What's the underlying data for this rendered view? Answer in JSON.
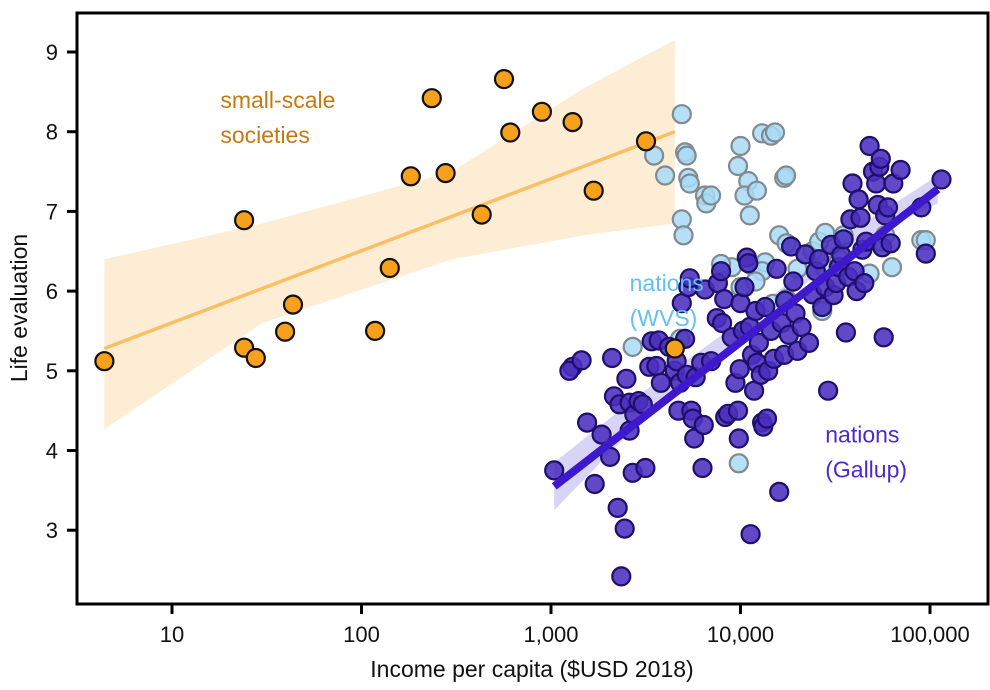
{
  "chart_data": {
    "type": "scatter",
    "title": "",
    "xlabel": "Income per capita ($USD 2018)",
    "ylabel": "Life evaluation",
    "xscale": "log",
    "xlim": [
      3.2,
      190000
    ],
    "ylim": [
      2.1,
      9.5
    ],
    "xticks": [
      10,
      100,
      1000,
      10000,
      100000
    ],
    "xtick_labels": [
      "10",
      "100",
      "1,000",
      "10,000",
      "100,000"
    ],
    "yticks": [
      3,
      4,
      5,
      6,
      7,
      8,
      9
    ],
    "ytick_labels": [
      "3",
      "4",
      "5",
      "6",
      "7",
      "8",
      "9"
    ],
    "grid": false,
    "colors": {
      "small_scale": "#f7a01c",
      "small_scale_line": "#fbbf63",
      "small_scale_band": "#fdebd0",
      "wvs": "#a8dbf7",
      "wvs_edge": "#808a8f",
      "gallup": "#4a2fbf",
      "gallup_edge": "#1d0f6b",
      "gallup_line": "#3d18cc",
      "gallup_band": "#cbc5f2",
      "label_small": "#c57a10",
      "label_wvs": "#62c0f2",
      "label_gallup": "#4a2bcc"
    },
    "annotations": [
      {
        "id": "small-scale",
        "lines": [
          "small-scale",
          "societies"
        ],
        "x": 18,
        "y": 8.3
      },
      {
        "id": "wvs",
        "lines": [
          "nations",
          "(WVS)"
        ],
        "x": 2600,
        "y": 6.0
      },
      {
        "id": "gallup",
        "lines": [
          "nations",
          "(Gallup)"
        ],
        "x": 28000,
        "y": 4.1
      }
    ],
    "series": [
      {
        "name": "small-scale societies",
        "fit": {
          "x": [
            4.4,
            4500
          ],
          "y": [
            5.28,
            8.0
          ]
        },
        "ci_band": {
          "x": [
            4.4,
            30,
            300,
            1500,
            4500
          ],
          "lower": [
            4.27,
            5.6,
            6.4,
            6.7,
            6.85
          ],
          "upper": [
            6.4,
            6.85,
            7.5,
            8.55,
            9.15
          ]
        },
        "points": [
          [
            4.4,
            5.12
          ],
          [
            24,
            6.89
          ],
          [
            24,
            5.29
          ],
          [
            27.7,
            5.16
          ],
          [
            39.5,
            5.49
          ],
          [
            43.5,
            5.83
          ],
          [
            118,
            5.5
          ],
          [
            141,
            6.29
          ],
          [
            182,
            7.44
          ],
          [
            235,
            8.42
          ],
          [
            278,
            7.48
          ],
          [
            431,
            6.96
          ],
          [
            565,
            8.66
          ],
          [
            610,
            7.99
          ],
          [
            895,
            8.25
          ],
          [
            1300,
            8.12
          ],
          [
            1680,
            7.26
          ],
          [
            3170,
            7.88
          ],
          [
            4500,
            5.28
          ]
        ]
      },
      {
        "name": "nations (WVS)",
        "points": [
          [
            4900,
            8.22
          ],
          [
            5100,
            7.74
          ],
          [
            5200,
            7.7
          ],
          [
            5300,
            7.42
          ],
          [
            5400,
            7.35
          ],
          [
            4900,
            6.9
          ],
          [
            5000,
            6.7
          ],
          [
            6500,
            7.2
          ],
          [
            6600,
            7.1
          ],
          [
            7000,
            7.2
          ],
          [
            10000,
            7.82
          ],
          [
            9700,
            7.57
          ],
          [
            11000,
            7.38
          ],
          [
            10500,
            7.2
          ],
          [
            11200,
            6.95
          ],
          [
            12200,
            7.26
          ],
          [
            13000,
            7.98
          ],
          [
            14500,
            7.95
          ],
          [
            15200,
            7.99
          ],
          [
            17000,
            7.42
          ],
          [
            17400,
            7.45
          ],
          [
            3500,
            7.7
          ],
          [
            4000,
            7.45
          ],
          [
            11500,
            6.32
          ],
          [
            16000,
            6.7
          ],
          [
            17500,
            6.6
          ],
          [
            13500,
            6.36
          ],
          [
            20000,
            6.28
          ],
          [
            24000,
            6.5
          ],
          [
            26000,
            6.62
          ],
          [
            28000,
            6.73
          ],
          [
            35000,
            6.7
          ],
          [
            55000,
            6.62
          ],
          [
            58000,
            6.7
          ],
          [
            28000,
            6.28
          ],
          [
            33000,
            6.4
          ],
          [
            48000,
            6.22
          ],
          [
            63000,
            6.3
          ],
          [
            90000,
            6.64
          ],
          [
            95000,
            6.64
          ],
          [
            9000,
            6.3
          ],
          [
            14800,
            5.84
          ],
          [
            17500,
            5.9
          ],
          [
            10000,
            6.05
          ],
          [
            27000,
            5.75
          ],
          [
            2700,
            5.3
          ],
          [
            4800,
            5.4
          ],
          [
            9800,
            3.84
          ],
          [
            7900,
            6.34
          ],
          [
            13000,
            6.25
          ],
          [
            12000,
            6.12
          ]
        ]
      },
      {
        "name": "nations (Gallup)",
        "fit": {
          "x": [
            1040,
            110000
          ],
          "y": [
            3.55,
            7.28
          ]
        },
        "ci_band": {
          "x": [
            1040,
            3000,
            10000,
            40000,
            110000
          ],
          "lower": [
            3.25,
            4.38,
            5.42,
            6.6,
            7.1
          ],
          "upper": [
            3.85,
            4.72,
            5.62,
            6.78,
            7.45
          ]
        },
        "points": [
          [
            1040,
            3.75
          ],
          [
            1300,
            5.05
          ],
          [
            1250,
            5.0
          ],
          [
            1450,
            5.13
          ],
          [
            1550,
            4.35
          ],
          [
            1700,
            3.58
          ],
          [
            1850,
            4.2
          ],
          [
            2100,
            5.16
          ],
          [
            2150,
            4.68
          ],
          [
            2050,
            3.92
          ],
          [
            2250,
            3.28
          ],
          [
            2300,
            4.58
          ],
          [
            2500,
            4.9
          ],
          [
            2450,
            3.02
          ],
          [
            2350,
            2.42
          ],
          [
            2600,
            4.6
          ],
          [
            2600,
            4.25
          ],
          [
            2700,
            3.72
          ],
          [
            2750,
            4.45
          ],
          [
            2900,
            4.62
          ],
          [
            3050,
            4.58
          ],
          [
            3150,
            3.78
          ],
          [
            3300,
            5.05
          ],
          [
            3400,
            5.37
          ],
          [
            3600,
            5.06
          ],
          [
            3700,
            5.38
          ],
          [
            3800,
            4.85
          ],
          [
            4200,
            5.3
          ],
          [
            4500,
            5.0
          ],
          [
            4600,
            5.12
          ],
          [
            4700,
            4.5
          ],
          [
            4800,
            4.85
          ],
          [
            4900,
            5.85
          ],
          [
            5100,
            5.4
          ],
          [
            5200,
            4.95
          ],
          [
            5300,
            6.05
          ],
          [
            5400,
            6.16
          ],
          [
            5500,
            4.5
          ],
          [
            5600,
            4.4
          ],
          [
            5700,
            4.15
          ],
          [
            5800,
            4.92
          ],
          [
            6200,
            5.1
          ],
          [
            6300,
            3.78
          ],
          [
            6400,
            4.32
          ],
          [
            6500,
            6.02
          ],
          [
            7000,
            5.12
          ],
          [
            7500,
            5.66
          ],
          [
            7600,
            6.1
          ],
          [
            7900,
            6.25
          ],
          [
            8000,
            5.6
          ],
          [
            8200,
            5.9
          ],
          [
            8300,
            4.42
          ],
          [
            8600,
            4.46
          ],
          [
            9000,
            5.42
          ],
          [
            9400,
            4.85
          ],
          [
            9700,
            4.5
          ],
          [
            9800,
            4.15
          ],
          [
            9900,
            5.02
          ],
          [
            10000,
            5.85
          ],
          [
            10300,
            5.5
          ],
          [
            10500,
            6.05
          ],
          [
            10800,
            6.42
          ],
          [
            11000,
            6.35
          ],
          [
            11200,
            5.55
          ],
          [
            11300,
            2.95
          ],
          [
            11500,
            5.2
          ],
          [
            11800,
            4.75
          ],
          [
            12000,
            5.75
          ],
          [
            12200,
            5.1
          ],
          [
            12500,
            5.35
          ],
          [
            12800,
            4.95
          ],
          [
            13000,
            4.35
          ],
          [
            13200,
            4.3
          ],
          [
            13500,
            5.8
          ],
          [
            13800,
            4.4
          ],
          [
            14000,
            5.0
          ],
          [
            14500,
            5.5
          ],
          [
            15000,
            5.15
          ],
          [
            15500,
            6.28
          ],
          [
            16000,
            3.48
          ],
          [
            16500,
            5.6
          ],
          [
            17000,
            5.2
          ],
          [
            17200,
            5.88
          ],
          [
            18000,
            5.45
          ],
          [
            18500,
            6.56
          ],
          [
            19000,
            6.12
          ],
          [
            19500,
            5.72
          ],
          [
            20000,
            5.25
          ],
          [
            21000,
            5.55
          ],
          [
            22000,
            6.46
          ],
          [
            23000,
            5.35
          ],
          [
            24000,
            5.96
          ],
          [
            25000,
            6.25
          ],
          [
            26000,
            6.4
          ],
          [
            27000,
            5.8
          ],
          [
            28000,
            6.05
          ],
          [
            29000,
            4.75
          ],
          [
            30000,
            6.58
          ],
          [
            31000,
            5.95
          ],
          [
            32000,
            6.1
          ],
          [
            33000,
            6.3
          ],
          [
            34000,
            6.45
          ],
          [
            35000,
            6.65
          ],
          [
            36000,
            5.48
          ],
          [
            37000,
            6.18
          ],
          [
            38000,
            6.9
          ],
          [
            39000,
            7.35
          ],
          [
            40000,
            6.25
          ],
          [
            41000,
            6.0
          ],
          [
            42000,
            7.15
          ],
          [
            43000,
            6.92
          ],
          [
            44000,
            6.52
          ],
          [
            45000,
            6.1
          ],
          [
            46000,
            6.62
          ],
          [
            48000,
            7.82
          ],
          [
            50000,
            7.5
          ],
          [
            52000,
            7.35
          ],
          [
            53000,
            7.08
          ],
          [
            54000,
            7.56
          ],
          [
            55000,
            7.66
          ],
          [
            56000,
            6.55
          ],
          [
            57000,
            5.42
          ],
          [
            58000,
            6.95
          ],
          [
            60000,
            7.05
          ],
          [
            62000,
            6.6
          ],
          [
            64000,
            7.35
          ],
          [
            70000,
            7.52
          ],
          [
            90000,
            7.05
          ],
          [
            95000,
            6.47
          ],
          [
            115000,
            7.4
          ]
        ]
      }
    ]
  }
}
